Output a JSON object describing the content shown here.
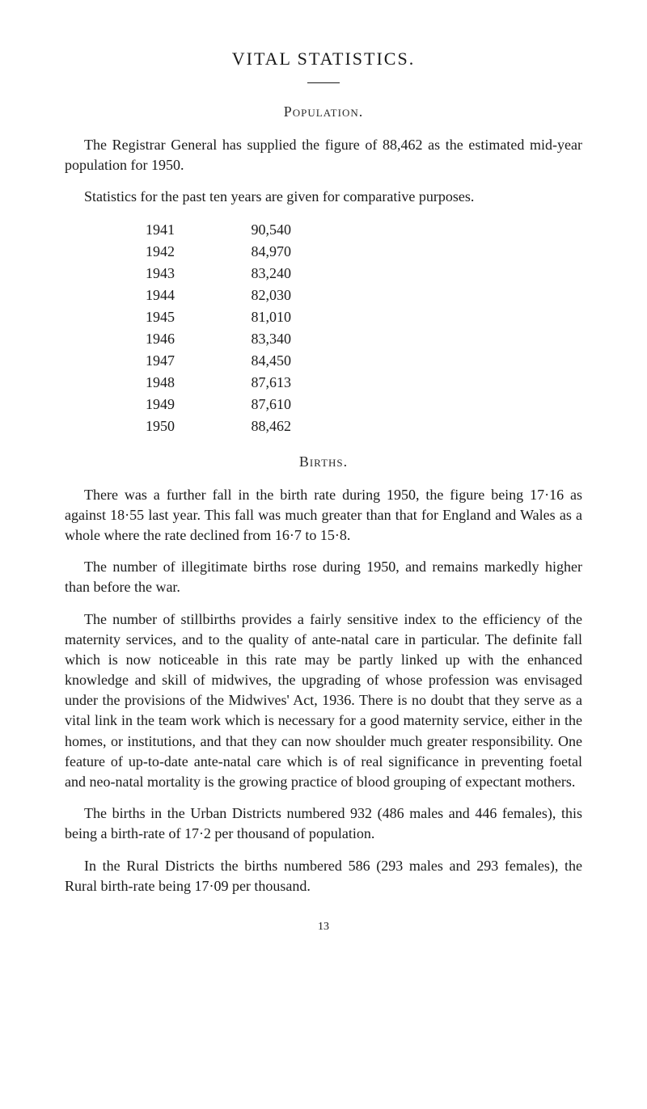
{
  "title": "VITAL STATISTICS.",
  "sections": {
    "population": {
      "heading": "Population.",
      "para1": "The Registrar General has supplied the figure of 88,462 as the estimated mid-year population for 1950.",
      "para2": "Statistics for the past ten years are given for comparative purposes.",
      "table": [
        {
          "year": "1941",
          "value": "90,540"
        },
        {
          "year": "1942",
          "value": "84,970"
        },
        {
          "year": "1943",
          "value": "83,240"
        },
        {
          "year": "1944",
          "value": "82,030"
        },
        {
          "year": "1945",
          "value": "81,010"
        },
        {
          "year": "1946",
          "value": "83,340"
        },
        {
          "year": "1947",
          "value": "84,450"
        },
        {
          "year": "1948",
          "value": "87,613"
        },
        {
          "year": "1949",
          "value": "87,610"
        },
        {
          "year": "1950",
          "value": "88,462"
        }
      ]
    },
    "births": {
      "heading": "Births.",
      "para1": "There was a further fall in the birth rate during 1950, the figure being 17·16 as against 18·55 last year. This fall was much greater than that for England and Wales as a whole where the rate declined from 16·7 to 15·8.",
      "para2": "The number of illegitimate births rose during 1950, and remains markedly higher than before the war.",
      "para3": "The number of stillbirths provides a fairly sensitive index to the efficiency of the maternity services, and to the quality of ante-natal care in particular. The definite fall which is now noticeable in this rate may be partly linked up with the enhanced knowledge and skill of midwives, the upgrading of whose profession was envisaged under the provisions of the Midwives' Act, 1936. There is no doubt that they serve as a vital link in the team work which is necessary for a good maternity service, either in the homes, or institutions, and that they can now shoulder much greater responsibility. One feature of up-to-date ante-natal care which is of real significance in preventing foetal and neo-natal mortality is the growing practice of blood grouping of expectant mothers.",
      "para4": "The births in the Urban Districts numbered 932 (486 males and 446 females), this being a birth-rate of 17·2 per thousand of population.",
      "para5": "In the Rural Districts the births numbered 586 (293 males and 293 females), the Rural birth-rate being 17·09 per thousand."
    }
  },
  "pageNumber": "13"
}
